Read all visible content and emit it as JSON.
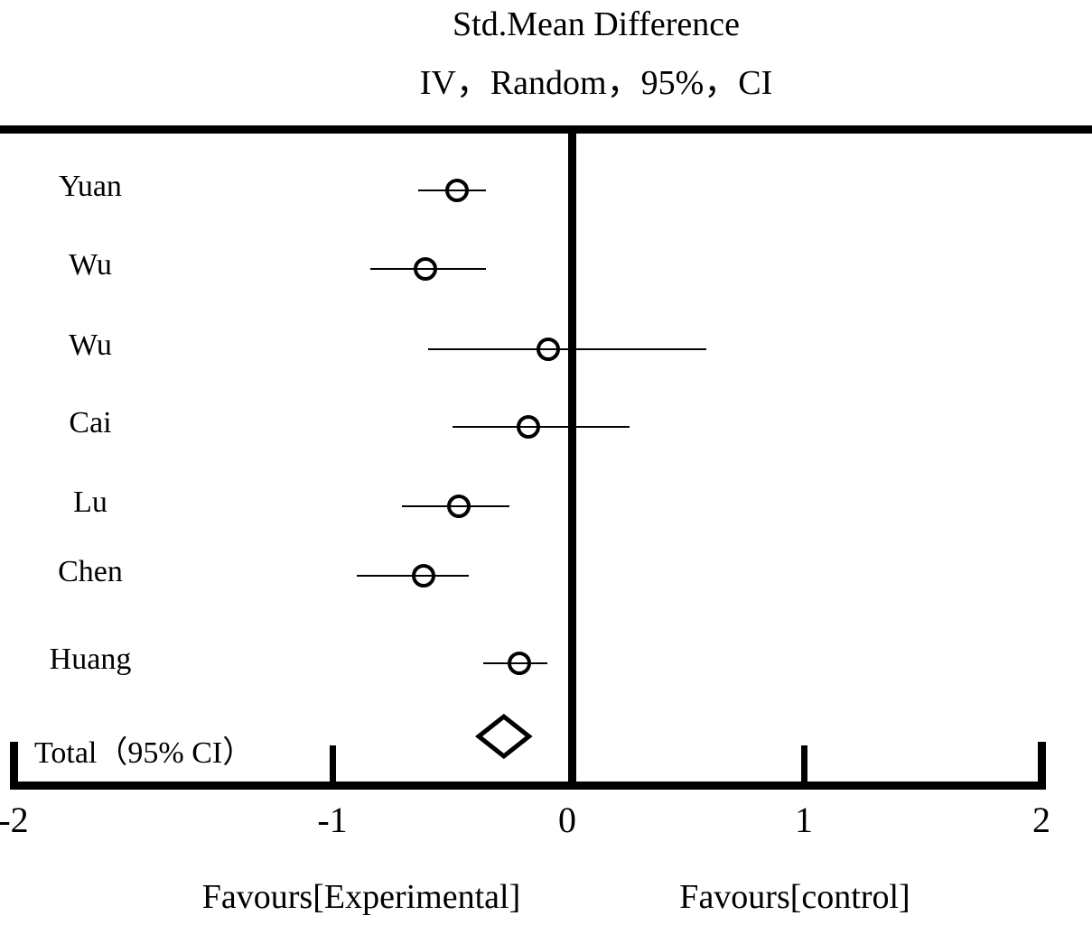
{
  "title": {
    "line1": "Std.Mean Difference",
    "line2": "IV，Random，95%，CI"
  },
  "chart_data": {
    "type": "forest",
    "title": "Std.Mean Difference",
    "subtitle": "IV，Random，95%，CI",
    "studies": [
      {
        "label": "Yuan",
        "estimate": -0.48,
        "ci_low": -0.64,
        "ci_high": -0.36
      },
      {
        "label": "Wu",
        "estimate": -0.61,
        "ci_low": -0.84,
        "ci_high": -0.36
      },
      {
        "label": "Wu",
        "estimate": -0.1,
        "ci_low": -0.6,
        "ci_high": 0.58
      },
      {
        "label": "Cai",
        "estimate": -0.18,
        "ci_low": -0.5,
        "ci_high": 0.25
      },
      {
        "label": "Lu",
        "estimate": -0.47,
        "ci_low": -0.71,
        "ci_high": -0.26
      },
      {
        "label": "Chen",
        "estimate": -0.62,
        "ci_low": -0.9,
        "ci_high": -0.43
      },
      {
        "label": "Huang",
        "estimate": -0.22,
        "ci_low": -0.37,
        "ci_high": -0.1
      }
    ],
    "total": {
      "label": "Total（95% CI）",
      "estimate": -0.28,
      "ci_low": -0.39,
      "ci_high": -0.18
    },
    "x_axis": {
      "range": [
        -2,
        2
      ],
      "ticks": [
        -2,
        -1,
        0,
        1,
        2
      ],
      "tick_labels": [
        "-2",
        "-1",
        "0",
        "1",
        "2"
      ],
      "zero_reference_line": true
    },
    "x_axis_footer": {
      "left": "Favours[Experimental]",
      "right": "Favours[control]"
    }
  },
  "colors": {
    "ink": "#000000",
    "background": "#ffffff"
  }
}
